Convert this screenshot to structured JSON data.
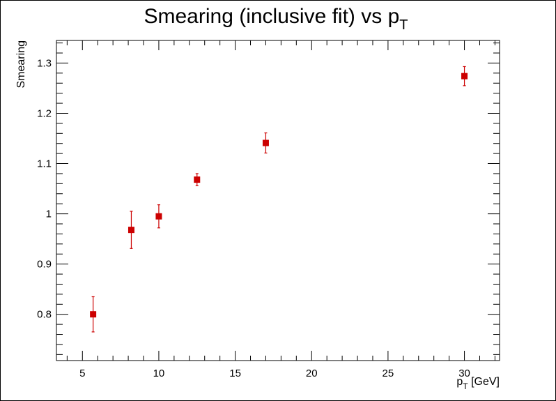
{
  "chart_data": {
    "type": "scatter",
    "title": {
      "main": "Smearing (inclusive fit) vs p",
      "sub": "T"
    },
    "xlabel": {
      "main": "p",
      "sub": "T",
      "rest": " [GeV]"
    },
    "ylabel": "Smearing",
    "xlim": [
      3.3,
      32.3
    ],
    "ylim": [
      0.708,
      1.345
    ],
    "x_ticks": [
      5,
      10,
      15,
      20,
      25,
      30
    ],
    "x_tick_labels": [
      "5",
      "10",
      "15",
      "20",
      "25",
      "30"
    ],
    "y_ticks": [
      0.8,
      0.9,
      1.0,
      1.1,
      1.2,
      1.3
    ],
    "y_tick_labels": [
      "0.8",
      "0.9",
      "1",
      "1.1",
      "1.2",
      "1.3"
    ],
    "grid": false,
    "marker_color": "#cc0000",
    "series": [
      {
        "points": [
          {
            "x": 5.7,
            "y": 0.8,
            "err": 0.035
          },
          {
            "x": 8.2,
            "y": 0.968,
            "err": 0.037
          },
          {
            "x": 10.0,
            "y": 0.995,
            "err": 0.023
          },
          {
            "x": 12.5,
            "y": 1.068,
            "err": 0.012
          },
          {
            "x": 17.0,
            "y": 1.141,
            "err": 0.02
          },
          {
            "x": 30.0,
            "y": 1.274,
            "err": 0.019
          }
        ]
      }
    ]
  }
}
